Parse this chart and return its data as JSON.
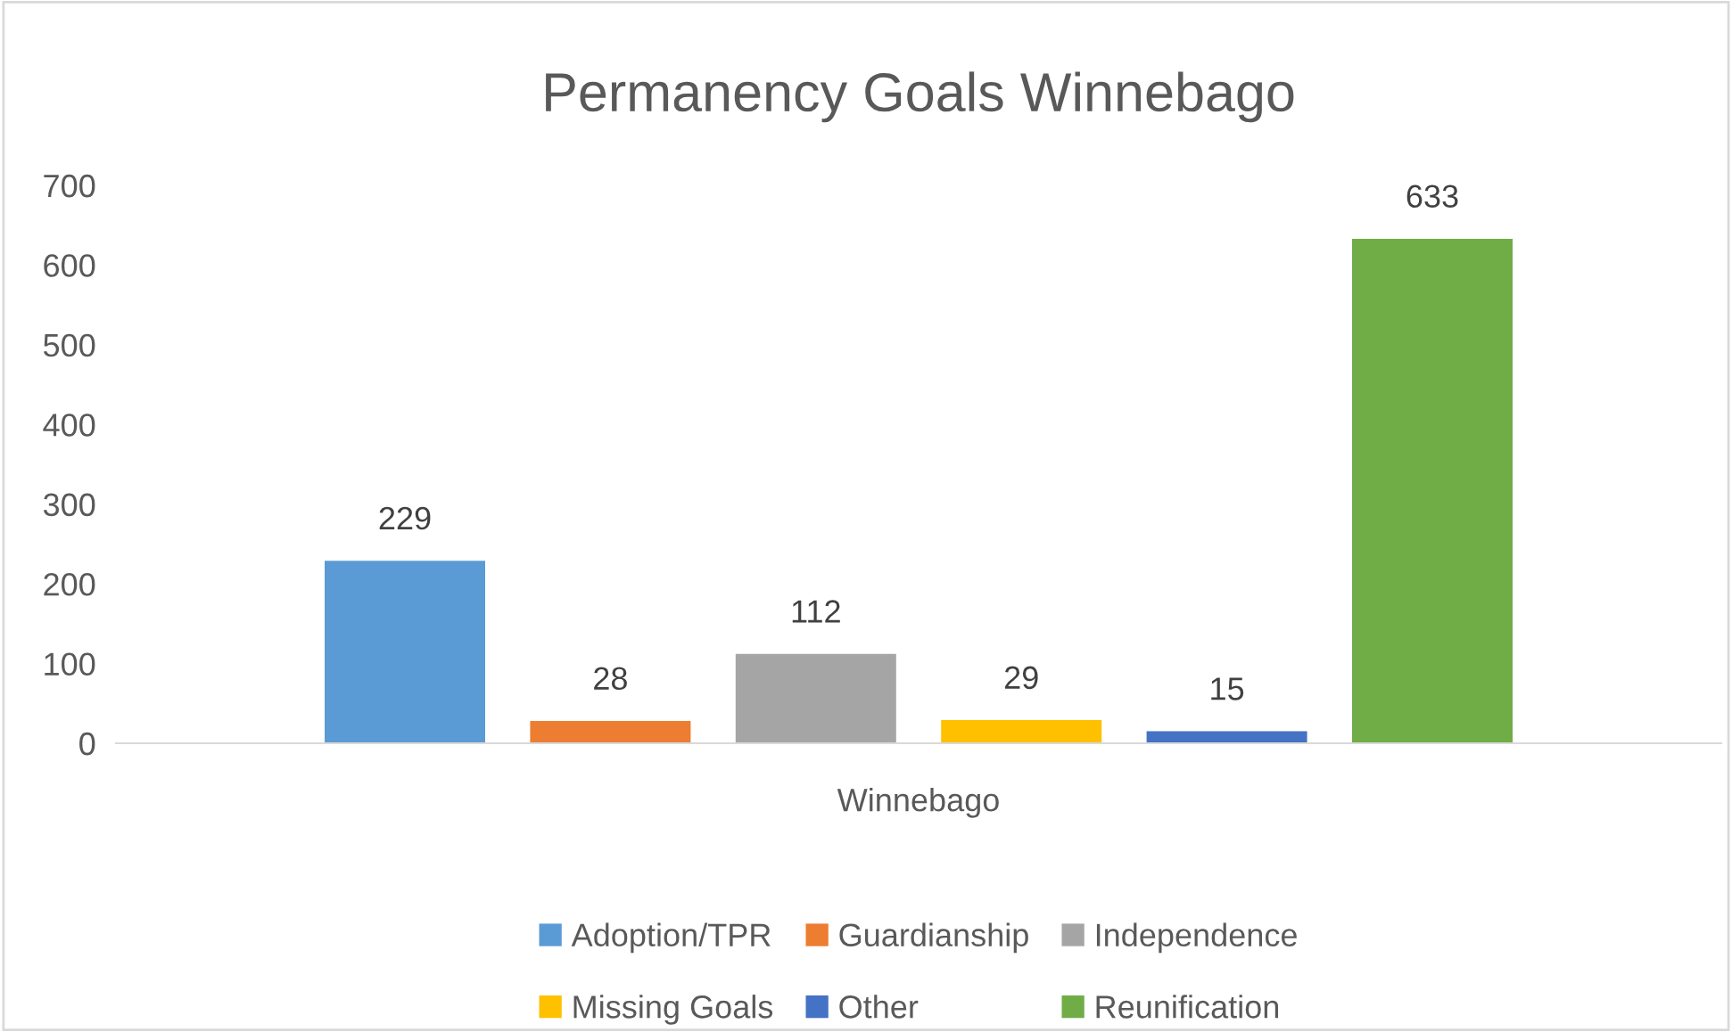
{
  "chart_data": {
    "type": "bar",
    "title": "Permanency Goals Winnebago",
    "categories": [
      "Winnebago"
    ],
    "series": [
      {
        "name": "Adoption/TPR",
        "color": "#5b9bd5",
        "values": [
          229
        ]
      },
      {
        "name": "Guardianship",
        "color": "#ed7d31",
        "values": [
          28
        ]
      },
      {
        "name": "Independence",
        "color": "#a5a5a5",
        "values": [
          112
        ]
      },
      {
        "name": "Missing Goals",
        "color": "#ffc000",
        "values": [
          29
        ]
      },
      {
        "name": "Other",
        "color": "#4472c4",
        "values": [
          15
        ]
      },
      {
        "name": "Reunification",
        "color": "#70ad47",
        "values": [
          633
        ]
      }
    ],
    "ylim": [
      0,
      700
    ],
    "yticks": [
      0,
      100,
      200,
      300,
      400,
      500,
      600,
      700
    ],
    "data_labels": true,
    "legend": "bottom",
    "grid": false
  }
}
